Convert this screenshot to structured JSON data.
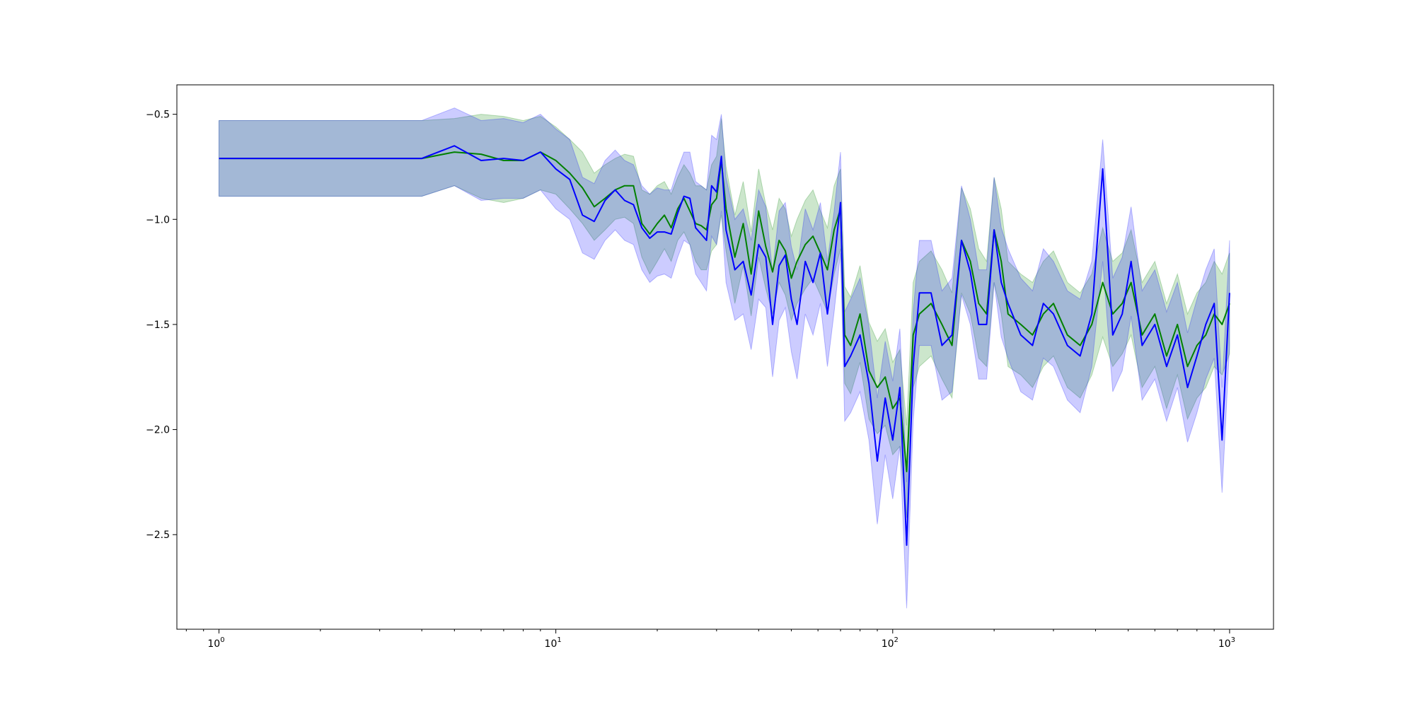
{
  "chart_data": {
    "type": "line",
    "title": "",
    "xlabel": "",
    "ylabel": "",
    "x_scale": "log",
    "xlim": [
      0.75,
      1350
    ],
    "ylim": [
      -2.95,
      -0.36
    ],
    "grid": false,
    "x_ticks": [
      {
        "value": 1,
        "base": "10",
        "exp": "0"
      },
      {
        "value": 10,
        "base": "10",
        "exp": "1"
      },
      {
        "value": 100,
        "base": "10",
        "exp": "2"
      },
      {
        "value": 1000,
        "base": "10",
        "exp": "3"
      }
    ],
    "y_ticks": [
      {
        "value": -0.5,
        "label": "−0.5"
      },
      {
        "value": -1.0,
        "label": "−1.0"
      },
      {
        "value": -1.5,
        "label": "−1.5"
      },
      {
        "value": -2.0,
        "label": "−2.0"
      },
      {
        "value": -2.5,
        "label": "−2.5"
      }
    ],
    "series": [
      {
        "color": "#008000",
        "band_color": "#008000",
        "band_opacity": 0.2,
        "x": [
          1,
          2,
          3,
          4,
          5,
          6,
          7,
          8,
          9,
          10,
          11,
          12,
          13,
          14,
          15,
          16,
          17,
          18,
          19,
          20,
          21,
          22,
          23,
          24,
          25,
          26,
          27,
          28,
          29,
          30,
          31,
          32,
          34,
          36,
          38,
          40,
          42,
          44,
          46,
          48,
          50,
          52,
          55,
          58,
          61,
          64,
          67,
          70,
          72,
          75,
          80,
          85,
          90,
          95,
          100,
          105,
          110,
          115,
          120,
          130,
          140,
          150,
          160,
          170,
          180,
          190,
          200,
          210,
          220,
          240,
          260,
          280,
          300,
          330,
          360,
          390,
          420,
          450,
          480,
          510,
          550,
          600,
          650,
          700,
          750,
          800,
          850,
          900,
          950,
          1000
        ],
        "values": [
          -0.71,
          -0.71,
          -0.71,
          -0.71,
          -0.68,
          -0.69,
          -0.72,
          -0.72,
          -0.68,
          -0.72,
          -0.78,
          -0.85,
          -0.94,
          -0.9,
          -0.86,
          -0.84,
          -0.84,
          -1.02,
          -1.07,
          -1.02,
          -0.98,
          -1.04,
          -0.95,
          -0.9,
          -0.96,
          -1.02,
          -1.03,
          -1.05,
          -0.93,
          -0.9,
          -0.72,
          -0.95,
          -1.18,
          -1.02,
          -1.26,
          -0.96,
          -1.13,
          -1.25,
          -1.1,
          -1.15,
          -1.28,
          -1.2,
          -1.12,
          -1.08,
          -1.16,
          -1.24,
          -1.05,
          -0.95,
          -1.55,
          -1.6,
          -1.45,
          -1.72,
          -1.8,
          -1.75,
          -1.9,
          -1.85,
          -2.2,
          -1.55,
          -1.45,
          -1.4,
          -1.5,
          -1.6,
          -1.1,
          -1.2,
          -1.4,
          -1.45,
          -1.05,
          -1.2,
          -1.45,
          -1.5,
          -1.55,
          -1.45,
          -1.4,
          -1.55,
          -1.6,
          -1.5,
          -1.3,
          -1.45,
          -1.4,
          -1.3,
          -1.55,
          -1.45,
          -1.65,
          -1.5,
          -1.7,
          -1.6,
          -1.55,
          -1.45,
          -1.5,
          -1.4
        ],
        "lower": [
          -0.89,
          -0.89,
          -0.89,
          -0.89,
          -0.84,
          -0.9,
          -0.92,
          -0.9,
          -0.86,
          -0.88,
          -0.95,
          -1.02,
          -1.1,
          -1.05,
          -1.0,
          -0.99,
          -1.02,
          -1.18,
          -1.26,
          -1.2,
          -1.14,
          -1.2,
          -1.1,
          -1.06,
          -1.12,
          -1.2,
          -1.24,
          -1.24,
          -1.15,
          -1.12,
          -0.98,
          -1.15,
          -1.4,
          -1.22,
          -1.46,
          -1.18,
          -1.33,
          -1.45,
          -1.3,
          -1.36,
          -1.48,
          -1.4,
          -1.33,
          -1.28,
          -1.36,
          -1.44,
          -1.26,
          -1.14,
          -1.78,
          -1.83,
          -1.68,
          -1.95,
          -2.02,
          -1.98,
          -2.12,
          -2.08,
          -2.42,
          -1.8,
          -1.7,
          -1.65,
          -1.76,
          -1.85,
          -1.35,
          -1.45,
          -1.66,
          -1.7,
          -1.3,
          -1.45,
          -1.7,
          -1.74,
          -1.8,
          -1.7,
          -1.65,
          -1.8,
          -1.85,
          -1.74,
          -1.56,
          -1.7,
          -1.64,
          -1.55,
          -1.8,
          -1.7,
          -1.9,
          -1.74,
          -1.95,
          -1.85,
          -1.8,
          -1.7,
          -1.74,
          -1.64
        ],
        "upper": [
          -0.53,
          -0.53,
          -0.53,
          -0.53,
          -0.52,
          -0.5,
          -0.51,
          -0.53,
          -0.51,
          -0.56,
          -0.62,
          -0.68,
          -0.78,
          -0.74,
          -0.71,
          -0.69,
          -0.7,
          -0.86,
          -0.88,
          -0.84,
          -0.82,
          -0.88,
          -0.8,
          -0.74,
          -0.78,
          -0.84,
          -0.84,
          -0.86,
          -0.74,
          -0.7,
          -0.52,
          -0.75,
          -0.98,
          -0.82,
          -1.06,
          -0.76,
          -0.93,
          -1.05,
          -0.9,
          -0.95,
          -1.08,
          -1.0,
          -0.91,
          -0.86,
          -0.96,
          -1.04,
          -0.84,
          -0.76,
          -1.32,
          -1.37,
          -1.22,
          -1.49,
          -1.58,
          -1.52,
          -1.68,
          -1.62,
          -1.98,
          -1.3,
          -1.2,
          -1.15,
          -1.24,
          -1.35,
          -0.85,
          -0.95,
          -1.14,
          -1.2,
          -0.8,
          -0.95,
          -1.2,
          -1.26,
          -1.3,
          -1.2,
          -1.15,
          -1.3,
          -1.35,
          -1.26,
          -1.04,
          -1.2,
          -1.16,
          -1.05,
          -1.3,
          -1.2,
          -1.4,
          -1.26,
          -1.45,
          -1.35,
          -1.3,
          -1.2,
          -1.26,
          -1.16
        ]
      },
      {
        "color": "#0000ff",
        "band_color": "#0000ff",
        "band_opacity": 0.2,
        "x": [
          1,
          2,
          3,
          4,
          5,
          6,
          7,
          8,
          9,
          10,
          11,
          12,
          13,
          14,
          15,
          16,
          17,
          18,
          19,
          20,
          21,
          22,
          23,
          24,
          25,
          26,
          27,
          28,
          29,
          30,
          31,
          32,
          34,
          36,
          38,
          40,
          42,
          44,
          46,
          48,
          50,
          52,
          55,
          58,
          61,
          64,
          67,
          70,
          72,
          75,
          80,
          85,
          90,
          95,
          100,
          105,
          110,
          115,
          120,
          130,
          140,
          150,
          160,
          170,
          180,
          190,
          200,
          210,
          220,
          240,
          260,
          280,
          300,
          330,
          360,
          390,
          420,
          450,
          480,
          510,
          550,
          600,
          650,
          700,
          750,
          800,
          850,
          900,
          950,
          1000
        ],
        "values": [
          -0.71,
          -0.71,
          -0.71,
          -0.71,
          -0.65,
          -0.72,
          -0.71,
          -0.72,
          -0.68,
          -0.76,
          -0.81,
          -0.98,
          -1.01,
          -0.91,
          -0.86,
          -0.91,
          -0.93,
          -1.04,
          -1.09,
          -1.06,
          -1.06,
          -1.07,
          -0.97,
          -0.89,
          -0.9,
          -1.04,
          -1.07,
          -1.1,
          -0.84,
          -0.87,
          -0.7,
          -1.05,
          -1.24,
          -1.2,
          -1.36,
          -1.12,
          -1.18,
          -1.5,
          -1.22,
          -1.17,
          -1.38,
          -1.5,
          -1.2,
          -1.3,
          -1.16,
          -1.45,
          -1.2,
          -0.92,
          -1.7,
          -1.65,
          -1.55,
          -1.78,
          -2.15,
          -1.85,
          -2.05,
          -1.8,
          -2.55,
          -1.7,
          -1.35,
          -1.35,
          -1.6,
          -1.55,
          -1.1,
          -1.25,
          -1.5,
          -1.5,
          -1.05,
          -1.3,
          -1.4,
          -1.55,
          -1.6,
          -1.4,
          -1.45,
          -1.6,
          -1.65,
          -1.45,
          -0.76,
          -1.55,
          -1.45,
          -1.2,
          -1.6,
          -1.5,
          -1.7,
          -1.55,
          -1.8,
          -1.65,
          -1.5,
          -1.4,
          -2.05,
          -1.35
        ],
        "lower": [
          -0.89,
          -0.89,
          -0.89,
          -0.89,
          -0.84,
          -0.91,
          -0.9,
          -0.9,
          -0.86,
          -0.95,
          -1.0,
          -1.16,
          -1.19,
          -1.1,
          -1.05,
          -1.1,
          -1.12,
          -1.24,
          -1.3,
          -1.27,
          -1.26,
          -1.28,
          -1.18,
          -1.1,
          -1.12,
          -1.26,
          -1.3,
          -1.34,
          -1.08,
          -1.12,
          -0.96,
          -1.3,
          -1.48,
          -1.45,
          -1.62,
          -1.38,
          -1.42,
          -1.75,
          -1.48,
          -1.42,
          -1.63,
          -1.76,
          -1.45,
          -1.55,
          -1.4,
          -1.7,
          -1.44,
          -1.16,
          -1.96,
          -1.92,
          -1.82,
          -2.05,
          -2.45,
          -2.12,
          -2.33,
          -2.08,
          -2.85,
          -1.96,
          -1.6,
          -1.6,
          -1.86,
          -1.82,
          -1.36,
          -1.5,
          -1.76,
          -1.76,
          -1.3,
          -1.56,
          -1.66,
          -1.82,
          -1.86,
          -1.66,
          -1.7,
          -1.86,
          -1.92,
          -1.7,
          -1.2,
          -1.82,
          -1.72,
          -1.46,
          -1.86,
          -1.76,
          -1.96,
          -1.8,
          -2.06,
          -1.92,
          -1.76,
          -1.66,
          -2.3,
          -1.6
        ],
        "upper": [
          -0.53,
          -0.53,
          -0.53,
          -0.53,
          -0.47,
          -0.53,
          -0.52,
          -0.54,
          -0.5,
          -0.57,
          -0.62,
          -0.8,
          -0.83,
          -0.72,
          -0.67,
          -0.72,
          -0.74,
          -0.84,
          -0.88,
          -0.85,
          -0.86,
          -0.86,
          -0.76,
          -0.68,
          -0.68,
          -0.82,
          -0.84,
          -0.86,
          -0.6,
          -0.62,
          -0.5,
          -0.8,
          -1.0,
          -0.95,
          -1.1,
          -0.86,
          -0.94,
          -1.25,
          -0.96,
          -0.92,
          -1.13,
          -1.24,
          -0.95,
          -1.05,
          -0.92,
          -1.2,
          -0.96,
          -0.68,
          -1.44,
          -1.38,
          -1.28,
          -1.51,
          -1.85,
          -1.58,
          -1.77,
          -1.52,
          -2.25,
          -1.44,
          -1.1,
          -1.1,
          -1.34,
          -1.28,
          -0.84,
          -1.0,
          -1.24,
          -1.24,
          -0.8,
          -1.04,
          -1.14,
          -1.28,
          -1.34,
          -1.14,
          -1.2,
          -1.34,
          -1.38,
          -1.2,
          -0.62,
          -1.28,
          -1.18,
          -0.94,
          -1.34,
          -1.24,
          -1.44,
          -1.3,
          -1.54,
          -1.38,
          -1.24,
          -1.14,
          -1.8,
          -1.1
        ]
      }
    ]
  }
}
